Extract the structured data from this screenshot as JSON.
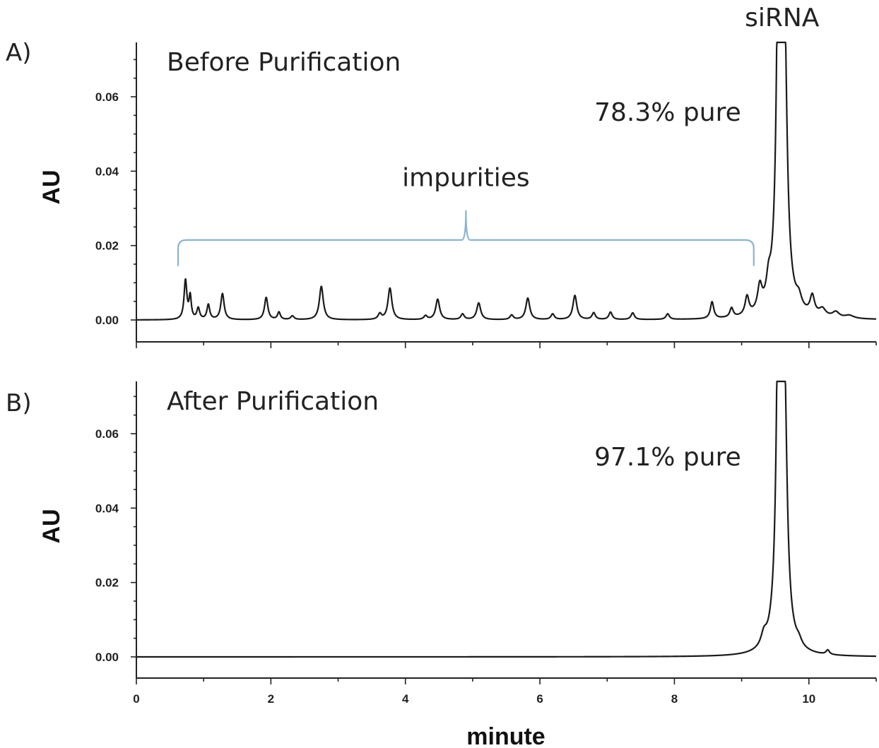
{
  "chart_data": [
    {
      "type": "line",
      "panel_label": "A)",
      "title": "Before Purification",
      "ylabel": "AU",
      "xlabel": "",
      "xlim": [
        0,
        11
      ],
      "ylim": [
        -0.005,
        0.074
      ],
      "x_ticks": [
        0,
        2,
        4,
        6,
        8,
        10
      ],
      "y_ticks": [
        "0.00",
        "0.02",
        "0.04",
        "0.06"
      ],
      "y_tick_values": [
        0,
        0.02,
        0.04,
        0.06
      ],
      "baseline": 0.0,
      "peaks": [
        {
          "x": 0.73,
          "h": 0.0105,
          "w": 0.025
        },
        {
          "x": 0.8,
          "h": 0.006,
          "w": 0.02
        },
        {
          "x": 0.92,
          "h": 0.003,
          "w": 0.025
        },
        {
          "x": 1.07,
          "h": 0.004,
          "w": 0.025
        },
        {
          "x": 1.28,
          "h": 0.007,
          "w": 0.03
        },
        {
          "x": 1.93,
          "h": 0.006,
          "w": 0.03
        },
        {
          "x": 2.12,
          "h": 0.002,
          "w": 0.025
        },
        {
          "x": 2.32,
          "h": 0.001,
          "w": 0.03
        },
        {
          "x": 2.75,
          "h": 0.009,
          "w": 0.035
        },
        {
          "x": 3.62,
          "h": 0.0015,
          "w": 0.03
        },
        {
          "x": 3.77,
          "h": 0.0085,
          "w": 0.035
        },
        {
          "x": 4.3,
          "h": 0.001,
          "w": 0.03
        },
        {
          "x": 4.48,
          "h": 0.0055,
          "w": 0.035
        },
        {
          "x": 4.85,
          "h": 0.0015,
          "w": 0.03
        },
        {
          "x": 5.09,
          "h": 0.0045,
          "w": 0.035
        },
        {
          "x": 5.58,
          "h": 0.0012,
          "w": 0.03
        },
        {
          "x": 5.82,
          "h": 0.0058,
          "w": 0.035
        },
        {
          "x": 6.19,
          "h": 0.0015,
          "w": 0.03
        },
        {
          "x": 6.52,
          "h": 0.0065,
          "w": 0.035
        },
        {
          "x": 6.8,
          "h": 0.0018,
          "w": 0.03
        },
        {
          "x": 7.05,
          "h": 0.002,
          "w": 0.03
        },
        {
          "x": 7.38,
          "h": 0.0018,
          "w": 0.03
        },
        {
          "x": 7.9,
          "h": 0.0015,
          "w": 0.03
        },
        {
          "x": 8.56,
          "h": 0.0045,
          "w": 0.03
        },
        {
          "x": 8.85,
          "h": 0.0025,
          "w": 0.03
        },
        {
          "x": 9.08,
          "h": 0.005,
          "w": 0.035
        },
        {
          "x": 9.27,
          "h": 0.0065,
          "w": 0.04
        },
        {
          "x": 9.4,
          "h": 0.0055,
          "w": 0.04
        },
        {
          "x": 9.57,
          "h": 0.2,
          "w": 0.035
        },
        {
          "x": 9.64,
          "h": 0.05,
          "w": 0.045
        },
        {
          "x": 9.85,
          "h": 0.003,
          "w": 0.05
        },
        {
          "x": 10.05,
          "h": 0.005,
          "w": 0.04
        },
        {
          "x": 10.2,
          "h": 0.002,
          "w": 0.06
        },
        {
          "x": 10.4,
          "h": 0.0015,
          "w": 0.06
        },
        {
          "x": 10.6,
          "h": 0.0008,
          "w": 0.08
        }
      ],
      "annotations": [
        {
          "text": "impurities",
          "x": 4.9,
          "y": 0.036
        },
        {
          "text": "78.3% pure",
          "x": 7.9,
          "y": 0.0535
        },
        {
          "text": "siRNA",
          "x": 9.6,
          "y": 0.079
        }
      ],
      "bracket": {
        "x_start": 0.62,
        "x_end": 9.18,
        "y": 0.0215,
        "y_bottom": 0.0145,
        "tip_y": 0.0295
      }
    },
    {
      "type": "line",
      "panel_label": "B)",
      "title": "After Purification",
      "ylabel": "AU",
      "xlabel": "minute",
      "xlim": [
        0,
        11
      ],
      "ylim": [
        -0.005,
        0.074
      ],
      "x_ticks": [
        0,
        2,
        4,
        6,
        8,
        10
      ],
      "x_tick_labels": [
        "0",
        "2",
        "4",
        "6",
        "8",
        "10"
      ],
      "y_ticks": [
        "0.00",
        "0.02",
        "0.04",
        "0.06"
      ],
      "y_tick_values": [
        0,
        0.02,
        0.04,
        0.06
      ],
      "baseline": 0.0,
      "peaks": [
        {
          "x": 9.33,
          "h": 0.003,
          "w": 0.05
        },
        {
          "x": 9.57,
          "h": 0.2,
          "w": 0.035
        },
        {
          "x": 9.64,
          "h": 0.045,
          "w": 0.045
        },
        {
          "x": 9.85,
          "h": 0.0015,
          "w": 0.05
        },
        {
          "x": 10.28,
          "h": 0.0012,
          "w": 0.03
        }
      ],
      "annotations": [
        {
          "text": "97.1% pure",
          "x": 7.9,
          "y": 0.0515
        }
      ]
    }
  ]
}
